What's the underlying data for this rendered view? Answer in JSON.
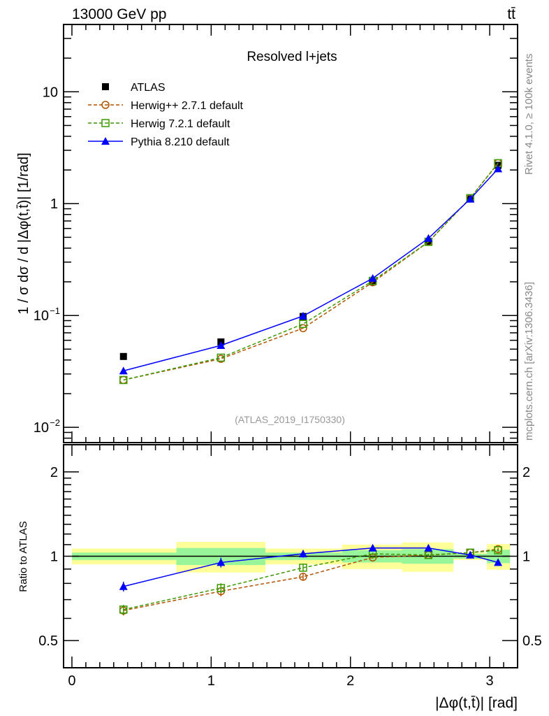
{
  "header": {
    "left": "13000 GeV pp",
    "right": "tt̄"
  },
  "side": {
    "rivet": "Rivet 4.1.0, ≥ 100k events",
    "mcplots": "mcplots.cern.ch [arXiv:1306.3436]"
  },
  "colors": {
    "data": "#000000",
    "herwigpp": "#b35300",
    "herwig7": "#3c9a00",
    "pythia": "#0000ff",
    "stat_band": "#99f599",
    "total_band": "#ffff99"
  },
  "chart_data": [
    {
      "type": "scatter",
      "title": "Resolved l+jets",
      "analysis": "(ATLAS_2019_I1750330)",
      "ylabel": "1 / σ dσ / d |Δφ(t,t̄)| [1/rad]",
      "yscale": "log",
      "ylim": [
        0.0073,
        40
      ],
      "xlim": [
        -0.06,
        3.2
      ],
      "yticks": [
        {
          "v": 0.01,
          "label": "10",
          "exp": "−2"
        },
        {
          "v": 0.1,
          "label": "10",
          "exp": "−1"
        },
        {
          "v": 1,
          "label": "1",
          "exp": ""
        },
        {
          "v": 10,
          "label": "10",
          "exp": ""
        }
      ],
      "legend_position": "top-left",
      "x": [
        0.37,
        1.07,
        1.66,
        2.16,
        2.56,
        2.86,
        3.06
      ],
      "bin_edges": [
        0,
        0.75,
        1.39,
        1.94,
        2.37,
        2.74,
        2.98,
        3.146
      ],
      "series": [
        {
          "name": "ATLAS",
          "key": "data",
          "values": [
            0.043,
            0.058,
            0.098,
            0.2,
            0.46,
            1.1,
            2.2
          ]
        },
        {
          "name": "Herwig++ 2.7.1 default",
          "key": "herwigpp",
          "values": [
            0.0265,
            0.041,
            0.077,
            0.198,
            0.455,
            1.12,
            2.3
          ]
        },
        {
          "name": "Herwig 7.2.1 default",
          "key": "herwig7",
          "values": [
            0.0265,
            0.042,
            0.084,
            0.204,
            0.455,
            1.12,
            2.3
          ]
        },
        {
          "name": "Pythia 8.210 default",
          "key": "pythia",
          "values": [
            0.032,
            0.054,
            0.099,
            0.215,
            0.49,
            1.1,
            2.05
          ]
        }
      ]
    },
    {
      "type": "scatter",
      "ylabel": "Ratio to ATLAS",
      "xlabel": "|Δφ(t,t̄)| [rad]",
      "yscale": "log",
      "ylim": [
        0.4,
        2.5
      ],
      "xlim": [
        -0.06,
        3.2
      ],
      "yticks": [
        {
          "v": 0.5,
          "label": "0.5"
        },
        {
          "v": 1,
          "label": "1"
        },
        {
          "v": 2,
          "label": "2"
        }
      ],
      "xticks": [
        {
          "v": 0,
          "label": "0"
        },
        {
          "v": 1,
          "label": "1"
        },
        {
          "v": 2,
          "label": "2"
        },
        {
          "v": 3,
          "label": "3"
        }
      ],
      "x": [
        0.37,
        1.07,
        1.66,
        2.16,
        2.56,
        2.86,
        3.06
      ],
      "bin_edges": [
        0,
        0.75,
        1.39,
        1.94,
        2.37,
        2.74,
        2.98,
        3.146
      ],
      "stat_err": [
        0.03,
        0.07,
        0.03,
        0.05,
        0.06,
        0.02,
        0.055
      ],
      "total_err": [
        0.065,
        0.125,
        0.065,
        0.1,
        0.12,
        0.03,
        0.105
      ],
      "series": [
        {
          "name": "Herwig++ 2.7.1 default",
          "key": "herwigpp",
          "values": [
            0.64,
            0.75,
            0.845,
            0.99,
            1.01,
            1.03,
            1.06
          ],
          "err": [
            0.04,
            0.04,
            0.03,
            0.01,
            0.01,
            0.01,
            0.01
          ]
        },
        {
          "name": "Herwig 7.2.1 default",
          "key": "herwig7",
          "values": [
            0.645,
            0.77,
            0.91,
            1.02,
            1.01,
            1.03,
            1.05
          ],
          "err": [
            0.04,
            0.04,
            0.03,
            0.01,
            0.01,
            0.01,
            0.01
          ]
        },
        {
          "name": "Pythia 8.210 default",
          "key": "pythia",
          "values": [
            0.78,
            0.95,
            1.02,
            1.07,
            1.07,
            1.01,
            0.95
          ],
          "err": [
            0.04,
            0.04,
            0.03,
            0.02,
            0.01,
            0.01,
            0.01
          ]
        }
      ]
    }
  ]
}
